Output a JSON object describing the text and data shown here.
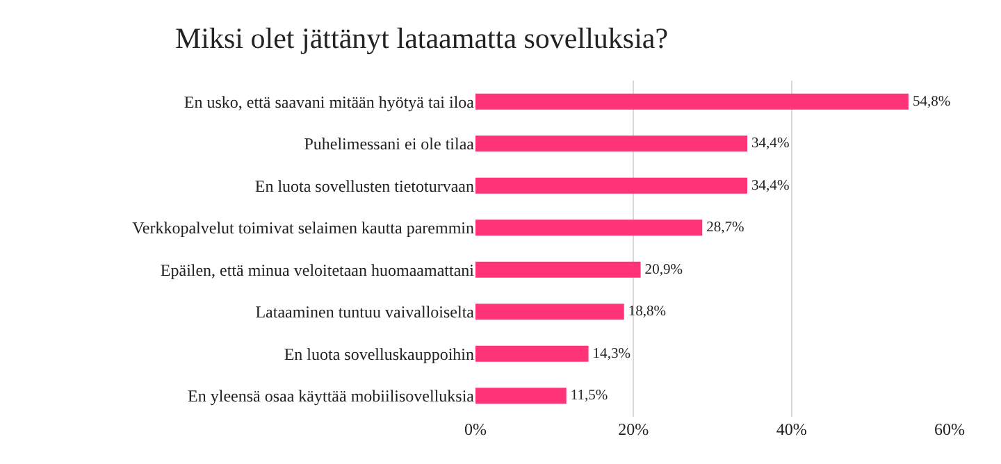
{
  "chart_data": {
    "type": "bar",
    "orientation": "horizontal",
    "title": "Miksi olet jättänyt lataamatta sovelluksia?",
    "categories": [
      "En usko, että saavani mitään hyötyä tai iloa",
      "Puhelimessani ei ole tilaa",
      "En luota sovellusten tietoturvaan",
      "Verkkopalvelut toimivat selaimen kautta paremmin",
      "Epäilen, että minua veloitetaan huomaamattani",
      "Lataaminen tuntuu vaivalloiselta",
      "En luota sovelluskauppoihin",
      "En yleensä osaa käyttää mobiilisovelluksia"
    ],
    "values": [
      54.8,
      34.4,
      34.4,
      28.7,
      20.9,
      18.8,
      14.3,
      11.5
    ],
    "value_labels": [
      "54,8%",
      "34,4%",
      "34,4%",
      "28,7%",
      "20,9%",
      "18,8%",
      "14,3%",
      "11,5%"
    ],
    "color": "#ff3377",
    "xlim": [
      0,
      60
    ],
    "xticks": [
      {
        "value": 0,
        "label": "0%"
      },
      {
        "value": 20,
        "label": "20%"
      },
      {
        "value": 40,
        "label": "40%"
      },
      {
        "value": 60,
        "label": "60%"
      }
    ],
    "grid": "x"
  }
}
